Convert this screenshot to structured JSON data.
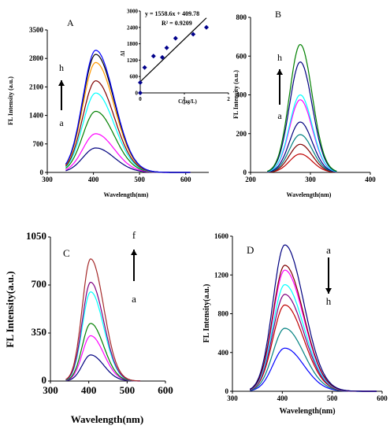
{
  "chart_data": [
    {
      "panel": "A",
      "type": "line",
      "xlabel": "Wavelength(nm)",
      "ylabel": "FL Intensity (a.u.)",
      "xlim": [
        300,
        650
      ],
      "ylim": [
        0,
        3500
      ],
      "xticks": [
        "300",
        "400",
        "500",
        "600"
      ],
      "yticks": [
        "0",
        "700",
        "1400",
        "2100",
        "2800",
        "3500"
      ],
      "arrow_top": "h",
      "arrow_bottom": "a",
      "arrow_dir": "up",
      "peak_x": 405,
      "width_left": 28,
      "width_right": 40,
      "x_start": 340,
      "x_end": 610,
      "series": [
        {
          "peak": 600,
          "color": "#00007f"
        },
        {
          "peak": 950,
          "color": "#ff00ff"
        },
        {
          "peak": 1500,
          "color": "#008000"
        },
        {
          "peak": 1950,
          "color": "#00ffff"
        },
        {
          "peak": 2250,
          "color": "#800000"
        },
        {
          "peak": 2700,
          "color": "#ff9900"
        },
        {
          "peak": 2900,
          "color": "#000000"
        },
        {
          "peak": 3000,
          "color": "#0000ff"
        }
      ],
      "inset": {
        "xlabel": "C(μg/L)",
        "ylabel": "ΔI",
        "xlim": [
          0,
          2
        ],
        "ylim": [
          0,
          3000
        ],
        "xticks": [
          "0",
          "1",
          "2"
        ],
        "yticks": [
          "0",
          "600",
          "1200",
          "1800",
          "2400",
          "3000"
        ],
        "equation": "y = 1558.6x + 409.78",
        "r2": "R² = 0.9209",
        "slope": 1558.6,
        "intercept": 409.78,
        "fit_x": [
          0,
          1.5
        ],
        "points": [
          {
            "x": 0.0,
            "y": 0
          },
          {
            "x": 0.0,
            "y": 380
          },
          {
            "x": 0.1,
            "y": 930
          },
          {
            "x": 0.3,
            "y": 1350
          },
          {
            "x": 0.5,
            "y": 1300
          },
          {
            "x": 0.6,
            "y": 1650
          },
          {
            "x": 0.8,
            "y": 2000
          },
          {
            "x": 1.2,
            "y": 2150
          },
          {
            "x": 1.5,
            "y": 2400
          }
        ]
      }
    },
    {
      "panel": "B",
      "type": "line",
      "xlabel": "Wavelength(nm)",
      "ylabel": "FL Intensity (a.u.)",
      "xlim": [
        200,
        400
      ],
      "ylim": [
        0,
        800
      ],
      "xticks": [
        "200",
        "300",
        "400"
      ],
      "yticks": [
        "0",
        "200",
        "400",
        "600",
        "800"
      ],
      "arrow_top": "h",
      "arrow_bottom": "a",
      "arrow_dir": "up",
      "peak_x": 283,
      "width_left": 18,
      "width_right": 20,
      "x_start": 228,
      "x_end": 345,
      "series": [
        {
          "peak": 95,
          "color": "#c00000"
        },
        {
          "peak": 145,
          "color": "#800000"
        },
        {
          "peak": 195,
          "color": "#008080"
        },
        {
          "peak": 260,
          "color": "#000080"
        },
        {
          "peak": 375,
          "color": "#ff00ff"
        },
        {
          "peak": 400,
          "color": "#00ffff"
        },
        {
          "peak": 570,
          "color": "#000080"
        },
        {
          "peak": 660,
          "color": "#008000"
        }
      ]
    },
    {
      "panel": "C",
      "type": "line",
      "xlabel": "Wavelength(nm)",
      "ylabel": "FL Intensity(a.u.)",
      "xlim": [
        300,
        600
      ],
      "ylim": [
        0,
        1050
      ],
      "xticks": [
        "300",
        "400",
        "500",
        "600"
      ],
      "yticks": [
        "0",
        "350",
        "700",
        "1050"
      ],
      "arrow_top": "f",
      "arrow_bottom": "a",
      "arrow_dir": "up",
      "peak_x": 405,
      "width_left": 22,
      "width_right": 34,
      "x_start": 340,
      "x_end": 535,
      "series": [
        {
          "peak": 190,
          "color": "#000080"
        },
        {
          "peak": 330,
          "color": "#ff00ff"
        },
        {
          "peak": 420,
          "color": "#008000"
        },
        {
          "peak": 650,
          "color": "#00ffff"
        },
        {
          "peak": 720,
          "color": "#800080"
        },
        {
          "peak": 890,
          "color": "#a52a2a"
        }
      ]
    },
    {
      "panel": "D",
      "type": "line",
      "xlabel": "Wavelength(nm)",
      "ylabel": "FL Intensity(a.u.)",
      "xlim": [
        300,
        600
      ],
      "ylim": [
        0,
        1600
      ],
      "xticks": [
        "300",
        "400",
        "500",
        "600"
      ],
      "yticks": [
        "0",
        "400",
        "800",
        "1200",
        "1600"
      ],
      "arrow_top": "a",
      "arrow_bottom": "h",
      "arrow_dir": "down",
      "peak_x": 405,
      "width_left": 24,
      "width_right": 38,
      "x_start": 335,
      "x_end": 590,
      "series": [
        {
          "peak": 445,
          "color": "#0000ff"
        },
        {
          "peak": 650,
          "color": "#008080"
        },
        {
          "peak": 890,
          "color": "#c00000"
        },
        {
          "peak": 1000,
          "color": "#800080"
        },
        {
          "peak": 1100,
          "color": "#00ffff"
        },
        {
          "peak": 1250,
          "color": "#ff00ff"
        },
        {
          "peak": 1300,
          "color": "#800000"
        },
        {
          "peak": 1510,
          "color": "#000080"
        }
      ]
    }
  ]
}
